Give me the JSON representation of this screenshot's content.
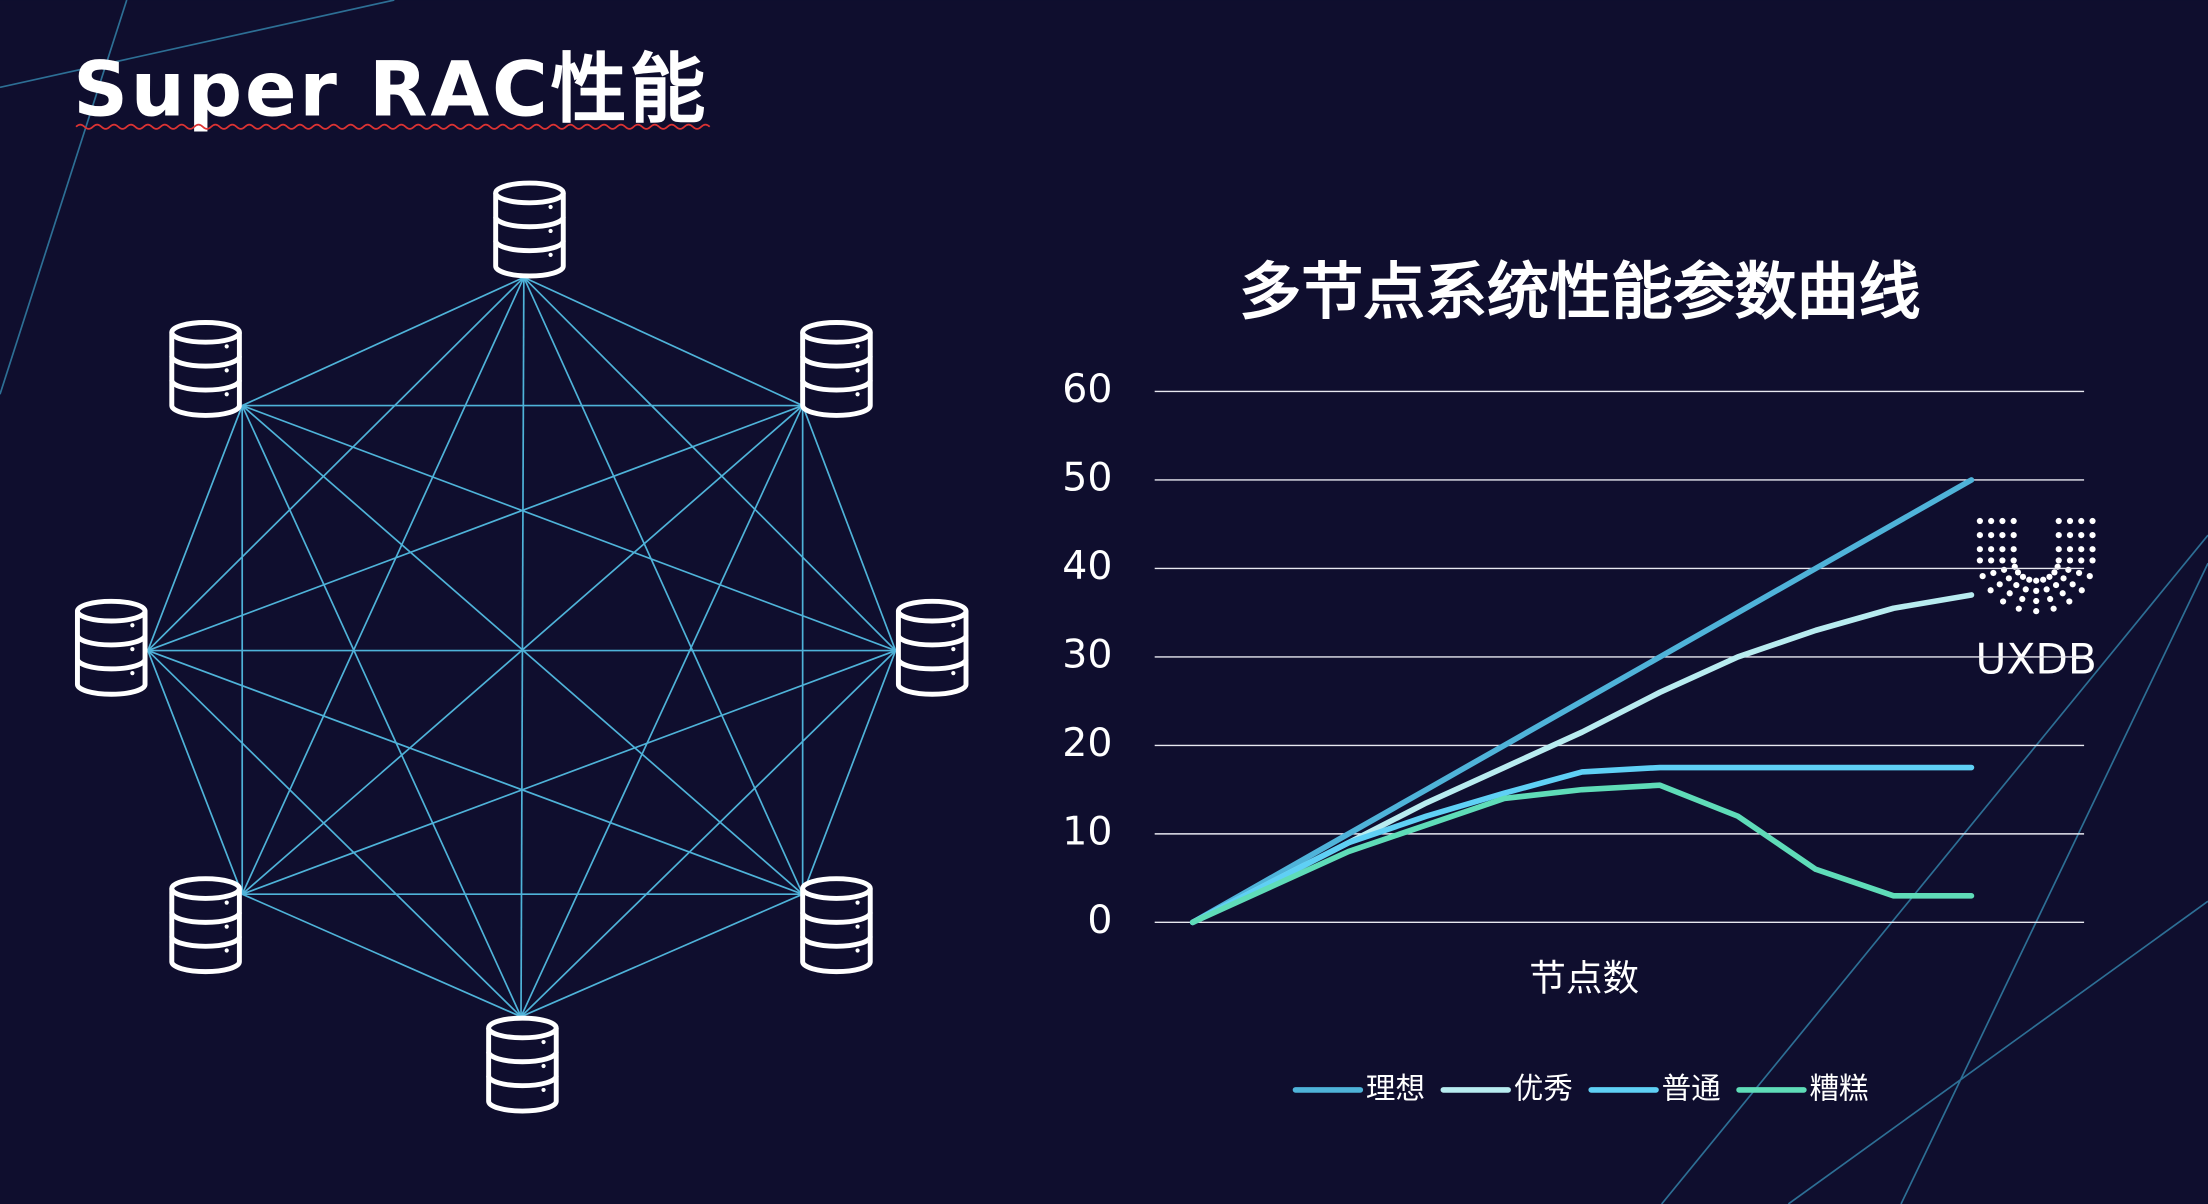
{
  "slide_title": "Super RAC性能",
  "logo_text": "UXDB",
  "chart_data": {
    "type": "line",
    "title": "多节点系统性能参数曲线",
    "x_label": "节点数",
    "categories": [
      null,
      null,
      null,
      null,
      null,
      null,
      null,
      null,
      null,
      null,
      null
    ],
    "series": [
      {
        "name": "理想",
        "color": "#4fb3d9",
        "values": [
          0,
          5,
          10,
          15,
          20,
          25,
          30,
          35,
          40,
          45,
          50
        ]
      },
      {
        "name": "优秀",
        "color": "#b8ecf0",
        "values": [
          0,
          4.5,
          9,
          13.5,
          17.5,
          21.5,
          26,
          30,
          33,
          35.5,
          37
        ]
      },
      {
        "name": "普通",
        "color": "#5fd0f5",
        "values": [
          0,
          4.5,
          9,
          12,
          14.6,
          17,
          17.5,
          17.5,
          17.5,
          17.5,
          17.5
        ]
      },
      {
        "name": "糟糕",
        "color": "#5fdcb8",
        "values": [
          0,
          4,
          8,
          11,
          14,
          15,
          15.5,
          12,
          6,
          3,
          3
        ]
      }
    ],
    "ylim": [
      0,
      60
    ],
    "yticks": [
      0,
      10,
      20,
      30,
      40,
      50,
      60
    ],
    "grid": true,
    "legend": "bottom"
  }
}
